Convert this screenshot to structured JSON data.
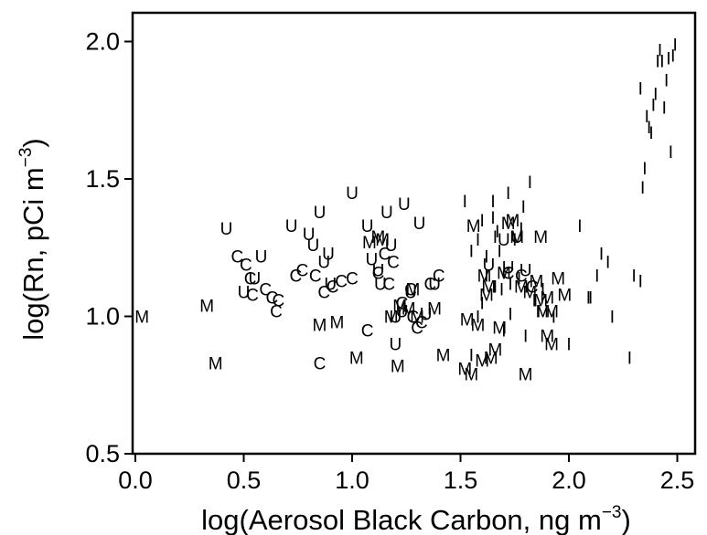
{
  "chart_data": {
    "type": "scatter",
    "title": "",
    "xlabel_main": "log(Aerosol Black Carbon, ng m",
    "xlabel_sup": "−3",
    "xlabel_end": ")",
    "ylabel_main": "log(Rn, pCi m",
    "ylabel_sup": "−3",
    "ylabel_end": ")",
    "xlim": [
      0.0,
      2.6
    ],
    "ylim": [
      0.5,
      2.1
    ],
    "x_ticks": [
      "0.0",
      "0.5",
      "1.0",
      "1.5",
      "2.0",
      "2.5"
    ],
    "y_ticks": [
      "0.5",
      "1.0",
      "1.5",
      "2.0"
    ],
    "x_tick_values": [
      0.0,
      0.5,
      1.0,
      1.5,
      2.0,
      2.5
    ],
    "y_tick_values": [
      0.5,
      1.0,
      1.5,
      2.0
    ],
    "grid": false,
    "series": [
      {
        "marker": "M",
        "x": [
          0.03,
          0.33,
          0.37,
          0.85,
          0.93,
          1.02,
          1.08,
          1.12,
          1.18,
          1.22,
          1.26,
          1.3,
          1.38,
          1.42,
          1.52,
          1.53,
          1.55,
          1.58,
          1.6,
          1.62,
          1.63,
          1.66,
          1.68,
          1.72,
          1.74,
          1.76,
          1.78,
          1.8,
          1.82,
          1.85,
          1.87,
          1.88,
          1.9,
          1.9,
          1.92,
          1.92,
          1.95,
          1.64,
          1.7,
          1.56,
          1.98,
          1.87,
          1.61,
          1.28,
          1.14,
          1.21
        ],
        "y": [
          1.0,
          1.04,
          0.83,
          0.97,
          0.98,
          0.85,
          1.27,
          1.29,
          1.0,
          1.04,
          1.03,
          1.0,
          1.03,
          0.86,
          0.81,
          0.99,
          0.79,
          0.97,
          0.84,
          1.08,
          1.11,
          0.88,
          0.96,
          1.34,
          1.35,
          1.29,
          1.11,
          0.79,
          1.09,
          1.13,
          1.06,
          1.02,
          1.07,
          0.93,
          1.02,
          0.9,
          1.14,
          0.85,
          1.16,
          1.33,
          1.08,
          1.29,
          1.15,
          1.1,
          1.28,
          0.82
        ]
      },
      {
        "marker": "C",
        "x": [
          0.47,
          0.51,
          0.53,
          0.54,
          0.6,
          0.63,
          0.65,
          0.66,
          0.74,
          0.77,
          0.83,
          0.85,
          0.87,
          0.91,
          0.95,
          1.0,
          1.07,
          1.12,
          1.15,
          1.17,
          1.19,
          1.23,
          1.27,
          1.28,
          1.3,
          1.32,
          1.36,
          1.4,
          1.72,
          1.78,
          1.83
        ],
        "y": [
          1.22,
          1.19,
          1.14,
          1.08,
          1.1,
          1.07,
          1.02,
          1.06,
          1.15,
          1.17,
          1.15,
          0.83,
          1.09,
          1.11,
          1.13,
          1.14,
          0.95,
          1.16,
          1.23,
          1.12,
          1.2,
          1.05,
          1.1,
          1.0,
          0.96,
          0.98,
          1.12,
          1.15,
          1.16,
          1.15,
          1.11
        ]
      },
      {
        "marker": "U",
        "x": [
          0.42,
          0.55,
          0.5,
          0.58,
          0.72,
          0.8,
          0.82,
          0.85,
          0.87,
          0.89,
          0.9,
          1.0,
          1.07,
          1.09,
          1.12,
          1.13,
          1.16,
          1.18,
          1.2,
          1.2,
          1.23,
          1.24,
          1.27,
          1.31,
          1.34,
          1.38,
          1.7,
          1.72,
          1.76,
          1.8,
          1.63
        ],
        "y": [
          1.32,
          1.14,
          1.09,
          1.22,
          1.33,
          1.3,
          1.26,
          1.38,
          1.2,
          1.23,
          1.12,
          1.45,
          1.33,
          1.21,
          1.17,
          1.12,
          1.38,
          1.26,
          1.0,
          0.9,
          1.02,
          1.41,
          1.09,
          1.34,
          1.01,
          1.12,
          1.28,
          1.18,
          1.29,
          1.17,
          1.19
        ]
      },
      {
        "marker": "I",
        "x": [
          1.52,
          1.55,
          1.58,
          1.6,
          1.62,
          1.65,
          1.66,
          1.67,
          1.68,
          1.69,
          1.7,
          1.72,
          1.73,
          1.75,
          1.77,
          1.78,
          1.8,
          1.82,
          1.84,
          1.86,
          1.88,
          1.65,
          1.62,
          1.6,
          1.66,
          1.73,
          1.79,
          1.55,
          1.58,
          1.93,
          2.0,
          2.05,
          2.09,
          2.1,
          2.13,
          2.15,
          2.18,
          2.2,
          2.28,
          2.3,
          2.33,
          2.33,
          2.34,
          2.35,
          2.36,
          2.37,
          2.38,
          2.39,
          2.4,
          2.41,
          2.42,
          2.43,
          2.44,
          2.45,
          2.46,
          2.47,
          2.48,
          2.49
        ],
        "y": [
          1.42,
          0.86,
          1.28,
          1.35,
          1.15,
          1.42,
          1.11,
          1.31,
          1.24,
          1.1,
          0.95,
          1.45,
          1.01,
          1.28,
          1.14,
          1.32,
          0.93,
          1.49,
          1.06,
          1.02,
          1.1,
          1.36,
          1.22,
          1.05,
          1.29,
          1.12,
          1.4,
          1.24,
          1.0,
          1.0,
          0.9,
          1.33,
          1.07,
          1.07,
          1.15,
          1.23,
          1.2,
          1.0,
          0.85,
          1.15,
          1.13,
          1.83,
          1.47,
          1.54,
          1.73,
          1.69,
          1.67,
          1.77,
          1.81,
          1.93,
          1.97,
          1.93,
          1.76,
          1.86,
          1.94,
          1.6,
          1.95,
          1.99
        ]
      }
    ]
  }
}
